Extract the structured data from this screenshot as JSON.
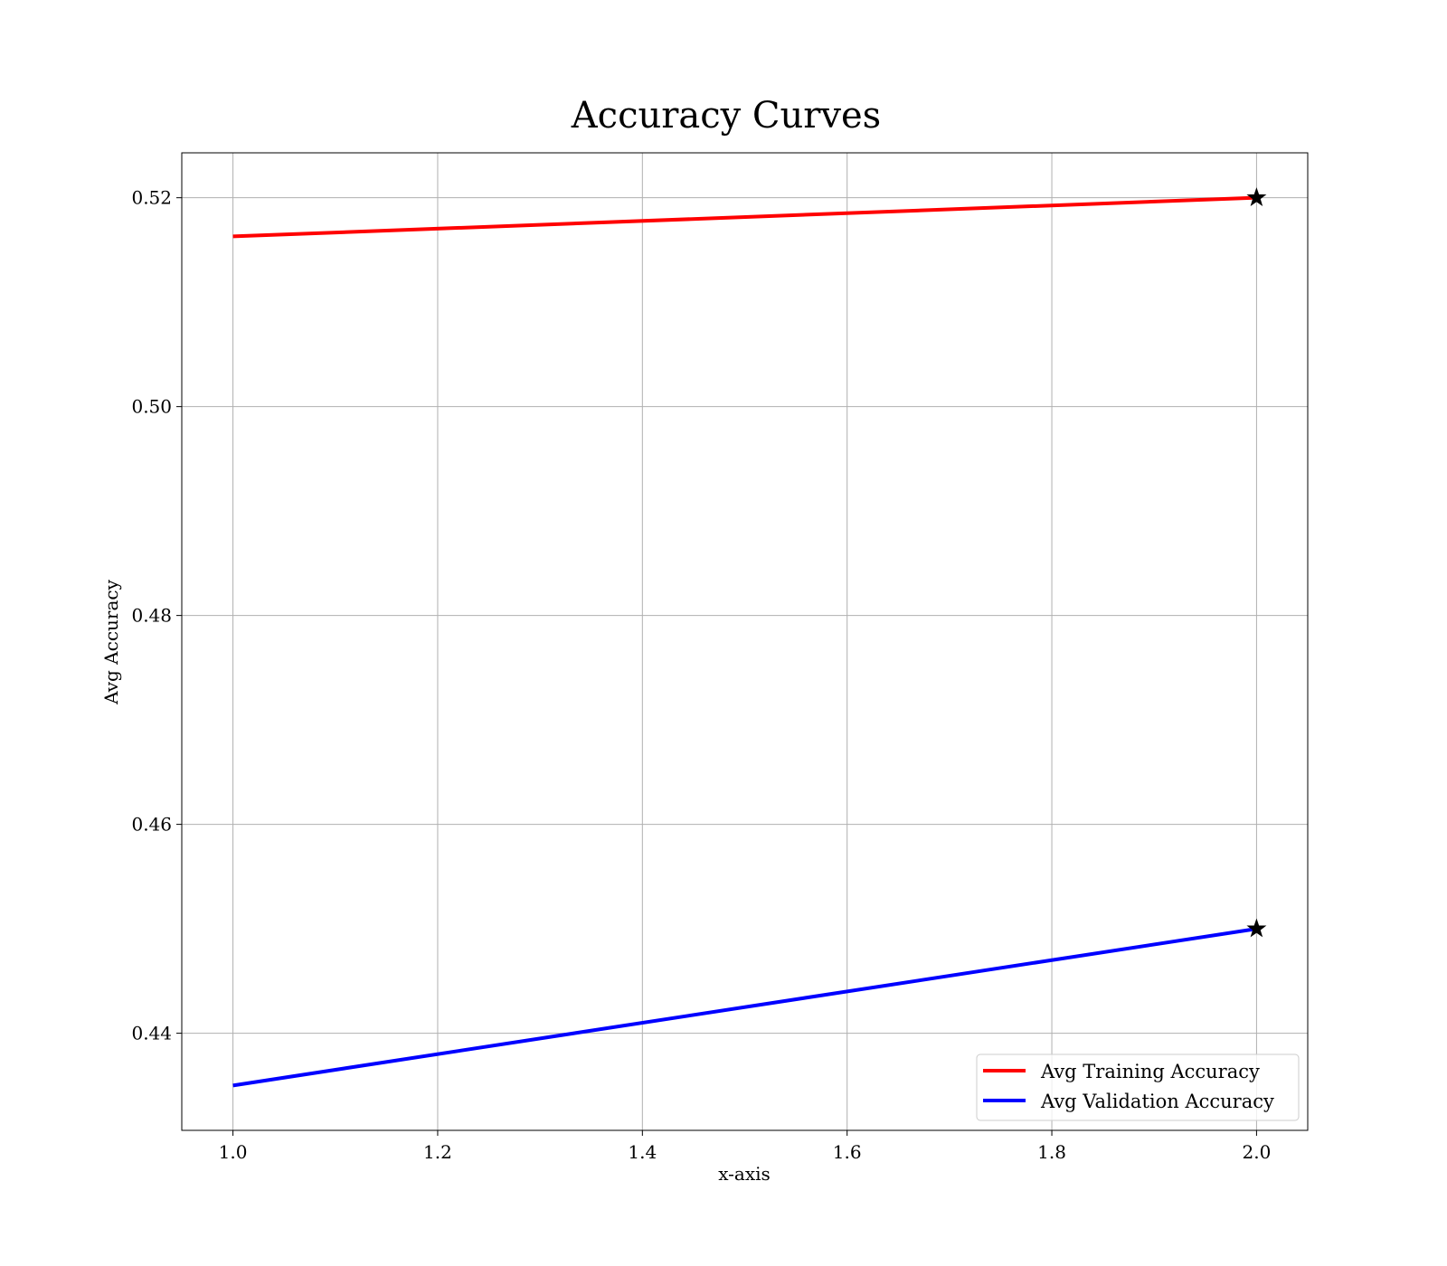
{
  "chart_data": {
    "type": "line",
    "title": "Accuracy Curves",
    "xlabel": "x-axis",
    "ylabel": "Avg Accuracy",
    "x": [
      1.0,
      2.0
    ],
    "xlim": [
      0.95,
      2.05
    ],
    "ylim": [
      0.4307,
      0.5243
    ],
    "xticks": [
      1.0,
      1.2,
      1.4,
      1.6,
      1.8,
      2.0
    ],
    "xtick_labels": [
      "1.0",
      "1.2",
      "1.4",
      "1.6",
      "1.8",
      "2.0"
    ],
    "yticks": [
      0.44,
      0.46,
      0.48,
      0.5,
      0.52
    ],
    "ytick_labels": [
      "0.44",
      "0.46",
      "0.48",
      "0.50",
      "0.52"
    ],
    "grid": true,
    "legend_position": "lower-right",
    "series": [
      {
        "name": "Avg Training Accuracy",
        "color": "#ff0000",
        "values": [
          0.5163,
          0.52
        ],
        "marker": "star",
        "marker_at": [
          2.0,
          0.52
        ]
      },
      {
        "name": "Avg Validation Accuracy",
        "color": "#0000ff",
        "values": [
          0.435,
          0.45
        ],
        "marker": "star",
        "marker_at": [
          2.0,
          0.45
        ]
      }
    ],
    "marker_color": "#000000"
  }
}
